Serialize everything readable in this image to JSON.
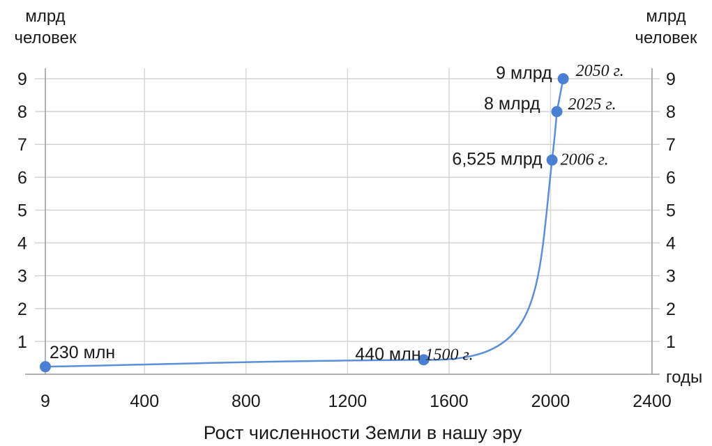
{
  "chart_data": {
    "type": "line",
    "title": "Рост численности Земли в нашу эру",
    "y_unit_left": [
      "млрд",
      "человек"
    ],
    "y_unit_right": [
      "млрд",
      "человек"
    ],
    "x_unit": "годы",
    "xlim": [
      9,
      2400
    ],
    "ylim": [
      0,
      9
    ],
    "x_ticks": [
      "9",
      "400",
      "800",
      "1200",
      "1600",
      "2000",
      "2400"
    ],
    "x_tick_values": [
      9,
      400,
      800,
      1200,
      1600,
      2000,
      2400
    ],
    "y_ticks": [
      "1",
      "2",
      "3",
      "4",
      "5",
      "6",
      "7",
      "8",
      "9"
    ],
    "grid": true,
    "line_color": "#5b8fd9",
    "marker_color": "#4a7fd4",
    "series": [
      {
        "points": [
          {
            "x": 9,
            "y": 0.23,
            "value_label": "230 млн",
            "year_label": ""
          },
          {
            "x": 1500,
            "y": 0.44,
            "value_label": "440 млн",
            "year_label": "1500 г."
          },
          {
            "x": 2006,
            "y": 6.525,
            "value_label": "6,525 млрд",
            "year_label": "2006 г."
          },
          {
            "x": 2025,
            "y": 8,
            "value_label": "8 млрд",
            "year_label": "2025 г."
          },
          {
            "x": 2050,
            "y": 9,
            "value_label": "9 млрд",
            "year_label": "2050 г."
          }
        ]
      }
    ]
  }
}
